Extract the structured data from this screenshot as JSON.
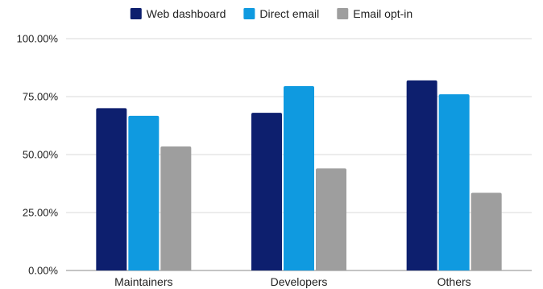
{
  "chart_data": {
    "type": "bar",
    "title": "",
    "xlabel": "",
    "ylabel": "",
    "categories": [
      "Maintainers",
      "Developers",
      "Others"
    ],
    "series": [
      {
        "name": "Web dashboard",
        "color": "#0d1f6e",
        "values": [
          70.0,
          68.0,
          82.0
        ]
      },
      {
        "name": "Direct email",
        "color": "#0f9ae0",
        "values": [
          66.7,
          79.5,
          76.0
        ]
      },
      {
        "name": "Email opt-in",
        "color": "#9e9e9e",
        "values": [
          53.5,
          44.0,
          33.5
        ]
      }
    ],
    "ylim": [
      0,
      100
    ],
    "yticks": [
      "0.00%",
      "25.00%",
      "50.00%",
      "75.00%",
      "100.00%"
    ],
    "ytick_values": [
      0,
      25,
      50,
      75,
      100
    ],
    "grid": true,
    "legend_position": "top-center"
  }
}
